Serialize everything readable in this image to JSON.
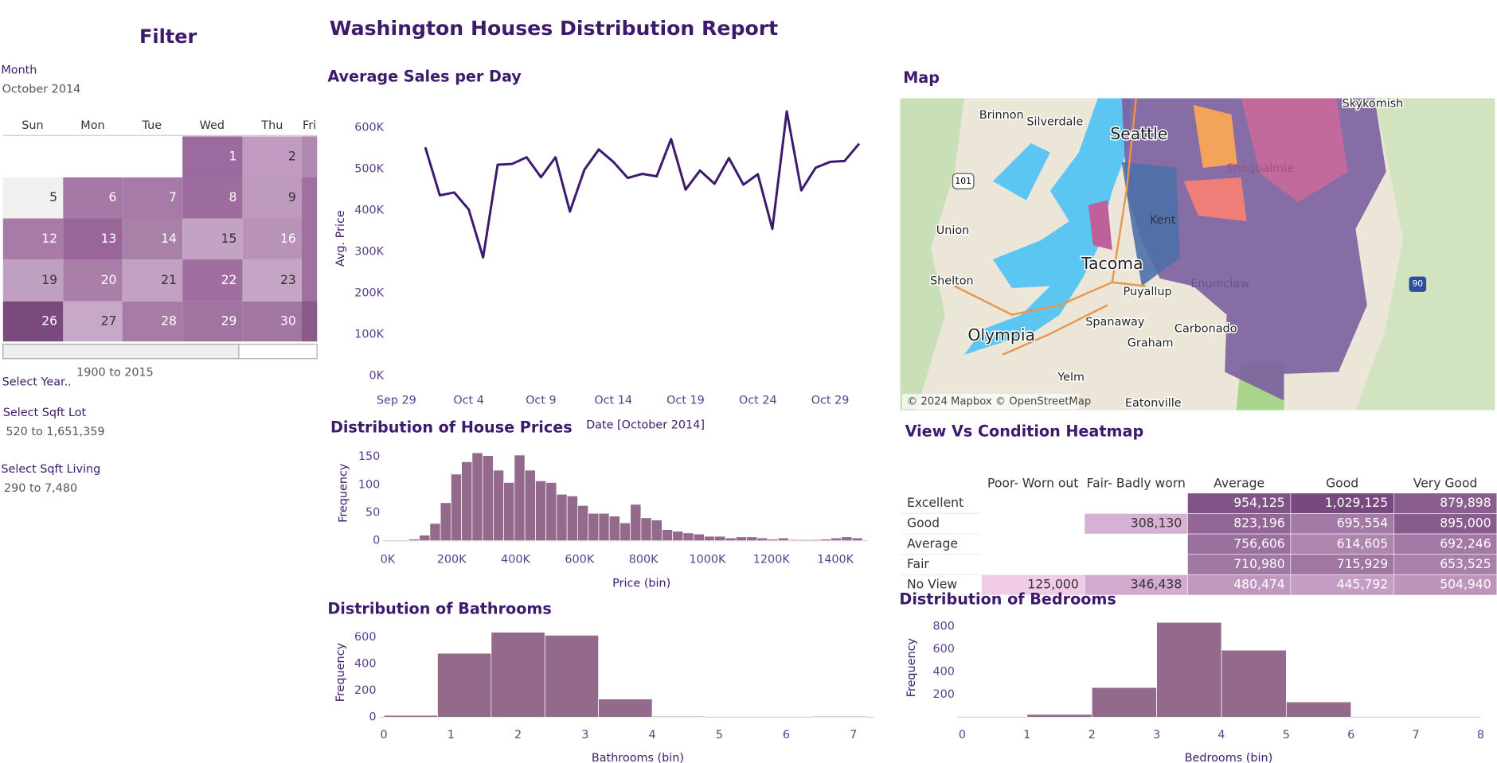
{
  "header": {
    "title": "Washington Houses Distribution Report"
  },
  "filter": {
    "title": "Filter",
    "month_label": "Month",
    "month_value": "October 2014",
    "weekdays": [
      "Sun",
      "Mon",
      "Tue",
      "Wed",
      "Thu",
      "Fri"
    ],
    "days": [
      1,
      2,
      5,
      6,
      7,
      8,
      9,
      12,
      13,
      14,
      15,
      16,
      19,
      20,
      21,
      22,
      23,
      26,
      27,
      28,
      29,
      30
    ],
    "colors": [
      "#9b6a9e",
      "#c09ac0",
      "#f0f0f0",
      "#a578a5",
      "#a87aa8",
      "#9e6d9f",
      "#bf9abf",
      "#a87ba7",
      "#9a6699",
      "#a980a8",
      "#c4a2c4",
      "#b893b7",
      "#c0a0c0",
      "#a97ea9",
      "#c3a1c3",
      "#a06fa0",
      "#c6a4c5",
      "#7b4a7c",
      "#c8a8c7",
      "#a67ca6",
      "#a074a0",
      "#a276a2"
    ],
    "year_label": "Select Year..",
    "year_value": "1900 to 2015",
    "lot_label": "Select Sqft Lot",
    "lot_value": "520 to 1,651,359",
    "living_label": "Select Sqft Living",
    "living_value": "290 to 7,480"
  },
  "map": {
    "title": "Map",
    "labels": [
      "Brinnon",
      "Silverdale",
      "Seattle",
      "Skykomish",
      "Union",
      "Shelton",
      "Tacoma",
      "Puyallup",
      "Enumclaw",
      "Spanaway",
      "Carbonado",
      "Graham",
      "Olympia",
      "Yelm",
      "Eatonville",
      "Snoqualmie",
      "Kent",
      "101",
      "90"
    ],
    "attribution": "© 2024 Mapbox © OpenStreetMap"
  },
  "chart_data": [
    {
      "type": "line",
      "title": "Average Sales per Day",
      "x": [
        "2014-10-01",
        "2014-10-02",
        "2014-10-03",
        "2014-10-04",
        "2014-10-05",
        "2014-10-06",
        "2014-10-07",
        "2014-10-08",
        "2014-10-09",
        "2014-10-10",
        "2014-10-11",
        "2014-10-12",
        "2014-10-13",
        "2014-10-14",
        "2014-10-15",
        "2014-10-16",
        "2014-10-17",
        "2014-10-18",
        "2014-10-19",
        "2014-10-20",
        "2014-10-21",
        "2014-10-22",
        "2014-10-23",
        "2014-10-24",
        "2014-10-25",
        "2014-10-26",
        "2014-10-27",
        "2014-10-28",
        "2014-10-29",
        "2014-10-30",
        "2014-10-31"
      ],
      "values": [
        552000,
        436000,
        443000,
        402000,
        286000,
        510000,
        512000,
        528000,
        480000,
        528000,
        397000,
        498000,
        547000,
        517000,
        478000,
        488000,
        482000,
        572000,
        450000,
        496000,
        464000,
        526000,
        462000,
        487000,
        355000,
        639000,
        448000,
        503000,
        517000,
        519000,
        561000
      ],
      "color": "#3d1a6e",
      "xlabel": "Date [October 2014]",
      "ylabel": "Avg. Price",
      "xlim": [
        "2014-09-28",
        "2014-11-01"
      ],
      "xticks": [
        {
          "value": "2014-09-29",
          "label": "Sep 29"
        },
        {
          "value": "2014-10-04",
          "label": "Oct 4"
        },
        {
          "value": "2014-10-09",
          "label": "Oct 9"
        },
        {
          "value": "2014-10-14",
          "label": "Oct 14"
        },
        {
          "value": "2014-10-19",
          "label": "Oct 19"
        },
        {
          "value": "2014-10-24",
          "label": "Oct 24"
        },
        {
          "value": "2014-10-29",
          "label": "Oct 29"
        }
      ],
      "ylim": [
        0,
        650000
      ],
      "yticks": [
        {
          "value": 0,
          "label": "0K"
        },
        {
          "value": 100000,
          "label": "100K"
        },
        {
          "value": 200000,
          "label": "200K"
        },
        {
          "value": 300000,
          "label": "300K"
        },
        {
          "value": 400000,
          "label": "400K"
        },
        {
          "value": 500000,
          "label": "500K"
        },
        {
          "value": 600000,
          "label": "600K"
        }
      ]
    },
    {
      "type": "histogram",
      "title": "Distribution of House Prices",
      "bins": [
        66000,
        99000,
        132000,
        165000,
        198000,
        231000,
        264000,
        297000,
        330000,
        363000,
        396000,
        429000,
        462000,
        495000,
        528000,
        561000,
        594000,
        627000,
        660000,
        693000,
        726000,
        759000,
        792000,
        825000,
        858000,
        891000,
        924000,
        957000,
        990000,
        1023000,
        1056000,
        1089000,
        1122000,
        1155000,
        1188000,
        1221000,
        1254000,
        1287000,
        1320000,
        1353000,
        1386000,
        1419000,
        1452000,
        1485000
      ],
      "values": [
        3,
        10,
        31,
        68,
        119,
        141,
        157,
        152,
        126,
        104,
        153,
        126,
        107,
        104,
        83,
        80,
        63,
        49,
        49,
        44,
        32,
        65,
        41,
        37,
        20,
        17,
        14,
        12,
        8,
        8,
        5,
        7,
        7,
        5,
        3,
        5,
        2,
        2,
        2,
        3,
        5,
        7,
        5
      ],
      "color": "#946a8c",
      "xlabel": "Price (bin)",
      "ylabel": "Frequency",
      "xlim": [
        0,
        1500000
      ],
      "xticks": [
        {
          "value": 0,
          "label": "0K"
        },
        {
          "value": 200000,
          "label": "200K"
        },
        {
          "value": 400000,
          "label": "400K"
        },
        {
          "value": 600000,
          "label": "600K"
        },
        {
          "value": 800000,
          "label": "800K"
        },
        {
          "value": 1000000,
          "label": "1000K"
        },
        {
          "value": 1200000,
          "label": "1200K"
        },
        {
          "value": 1400000,
          "label": "1400K"
        }
      ],
      "ylim": [
        0,
        160
      ],
      "yticks": [
        0,
        50,
        100,
        150
      ]
    },
    {
      "type": "heatmap",
      "title": "View Vs Condition Heatmap",
      "columns": [
        "Poor- Worn out",
        "Fair- Badly worn",
        "Average",
        "Good",
        "Very Good"
      ],
      "rows": [
        "Excellent",
        "Good",
        "Average",
        "Fair",
        "No View"
      ],
      "values": [
        [
          null,
          null,
          954125,
          1029125,
          879898
        ],
        [
          null,
          308130,
          823196,
          695554,
          895000
        ],
        [
          null,
          null,
          756606,
          614605,
          692246
        ],
        [
          null,
          null,
          710980,
          715929,
          653525
        ],
        [
          125000,
          346438,
          480474,
          445792,
          504940
        ]
      ],
      "value_labels": [
        [
          null,
          null,
          "954,125",
          "1,029,125",
          "879,898"
        ],
        [
          null,
          "308,130",
          "823,196",
          "695,554",
          "895,000"
        ],
        [
          null,
          null,
          "756,606",
          "614,605",
          "692,246"
        ],
        [
          null,
          null,
          "710,980",
          "715,929",
          "653,525"
        ],
        [
          "125,000",
          "346,438",
          "480,474",
          "445,792",
          "504,940"
        ]
      ],
      "color_range": [
        "#efcbe8",
        "#77497f"
      ]
    },
    {
      "type": "histogram",
      "title": "Distribution of Bathrooms",
      "bins": [
        0,
        0.8,
        1.6,
        2.4,
        3.2,
        4.0,
        4.8,
        5.6,
        6.4,
        7.2
      ],
      "values": [
        14,
        479,
        636,
        614,
        136,
        7,
        0,
        0,
        7
      ],
      "color": "#946a8c",
      "xlabel": "Bathrooms (bin)",
      "ylabel": "Frequency",
      "xlim": [
        0,
        7.3
      ],
      "xticks": [
        0,
        1,
        2,
        3,
        4,
        5,
        6,
        7
      ],
      "ylim": [
        0,
        700
      ],
      "yticks": [
        0,
        200,
        400,
        600
      ]
    },
    {
      "type": "histogram",
      "title": "Distribution of Bedrooms",
      "bins": [
        0,
        1,
        2,
        3,
        4,
        5,
        6,
        7,
        8
      ],
      "values": [
        0,
        25,
        262,
        837,
        592,
        135,
        0,
        0
      ],
      "color": "#946a8c",
      "xlabel": "Bedrooms (bin)",
      "ylabel": "Frequency",
      "xlim": [
        0,
        8
      ],
      "xticks": [
        0,
        1,
        2,
        3,
        4,
        5,
        6,
        7,
        8
      ],
      "ylim": [
        0,
        850
      ],
      "yticks": [
        200,
        400,
        600,
        800
      ]
    }
  ]
}
